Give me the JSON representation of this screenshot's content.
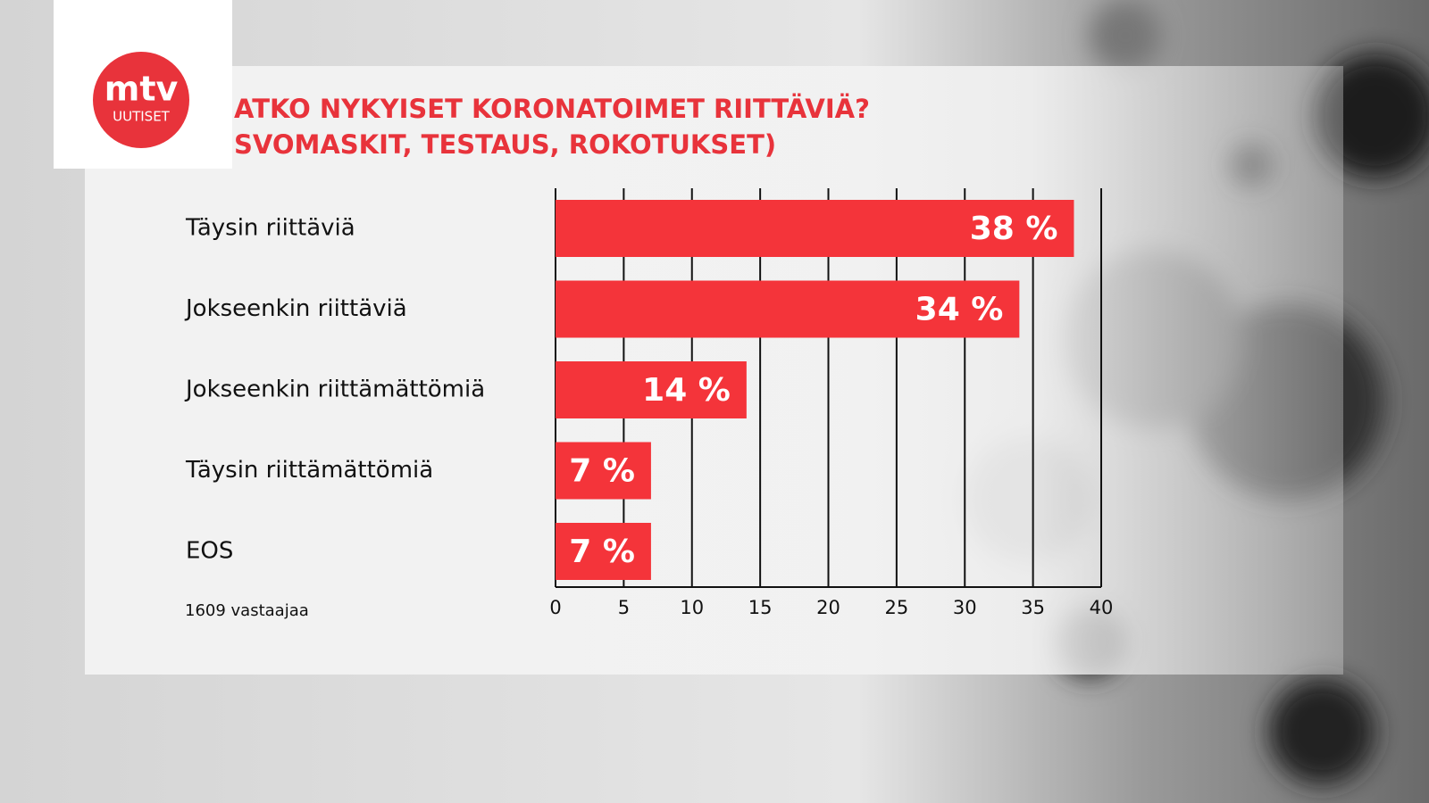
{
  "logo": {
    "brand": "mtv",
    "subtitle": "UUTISET"
  },
  "chart_data": {
    "type": "bar",
    "orientation": "horizontal",
    "title_lines": [
      "ATKO NYKYISET KORONATOIMET RIITTÄVIÄ?",
      "SVOMASKIT, TESTAUS, ROKOTUKSET)"
    ],
    "categories": [
      "Täysin riittäviä",
      "Jokseenkin riittäviä",
      "Jokseenkin riittämättömiä",
      "Täysin riittämättömiä",
      "EOS"
    ],
    "values": [
      38,
      34,
      14,
      7,
      7
    ],
    "value_labels": [
      "38 %",
      "34 %",
      "14 %",
      "7 %",
      "7 %"
    ],
    "color": "#f4343a",
    "xlim": [
      0,
      40
    ],
    "xticks": [
      0,
      5,
      10,
      15,
      20,
      25,
      30,
      35,
      40
    ],
    "grid": true,
    "note": "1609 vastaajaa"
  }
}
